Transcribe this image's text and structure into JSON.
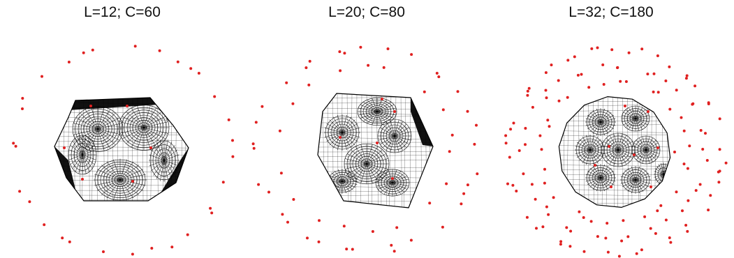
{
  "figure": {
    "panels": [
      {
        "id": "dodecahedron",
        "title": "L=12; C=60"
      },
      {
        "id": "icosahedron",
        "title": "L=20; C=80"
      },
      {
        "id": "polyhedron",
        "title": "L=32; C=180"
      }
    ],
    "colors": {
      "background": "#ffffff",
      "mesh_fill": "#ffffff",
      "mesh_lines": "#000000",
      "points": "#e02020"
    }
  }
}
